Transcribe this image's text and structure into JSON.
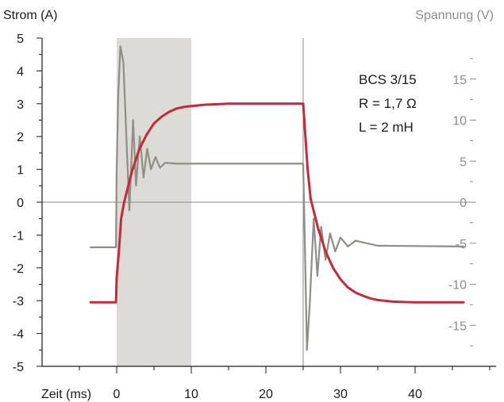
{
  "chart_data": {
    "type": "line",
    "title": "",
    "ylabel_left": "Strom (A)",
    "ylabel_right": "Spannung (V)",
    "xlabel": "Zeit (ms)",
    "xlim": [
      -10,
      50
    ],
    "ylim_left": [
      -5,
      5
    ],
    "ylim_right": [
      -20,
      20
    ],
    "x_ticks": [
      0,
      10,
      20,
      30,
      40
    ],
    "y_ticks_left": [
      5,
      4,
      3,
      2,
      1,
      0,
      -1,
      -2,
      -3,
      -4,
      -5
    ],
    "y_ticks_right": [
      15,
      10,
      5,
      0,
      -5,
      -10,
      -15
    ],
    "shaded_region": [
      0,
      10
    ],
    "vertical_marker": 25,
    "annotations": [
      "BCS 3/15",
      "R = 1,7 Ω",
      "L = 2 mH"
    ],
    "colors": {
      "current": "#c8283a",
      "voltage": "#8e8e86",
      "shade": "#dcdbd5",
      "axes": "#1a1a1a"
    },
    "series": [
      {
        "axis": "left",
        "values": [
          [
            -3.5,
            -3.05
          ],
          [
            -0.1,
            -3.05
          ],
          [
            0,
            -2.3
          ],
          [
            0.3,
            -1.5
          ],
          [
            0.6,
            -0.5
          ],
          [
            1,
            0.0
          ],
          [
            2,
            0.9
          ],
          [
            3,
            1.6
          ],
          [
            4,
            2.05
          ],
          [
            5,
            2.4
          ],
          [
            6,
            2.6
          ],
          [
            7,
            2.75
          ],
          [
            8,
            2.85
          ],
          [
            9,
            2.9
          ],
          [
            10,
            2.93
          ],
          [
            12,
            2.97
          ],
          [
            15,
            3.0
          ],
          [
            25,
            3.0
          ],
          [
            25.3,
            2.0
          ],
          [
            25.6,
            1.0
          ],
          [
            26,
            0.1
          ],
          [
            27,
            -0.8
          ],
          [
            28,
            -1.5
          ],
          [
            29,
            -2.0
          ],
          [
            30,
            -2.35
          ],
          [
            31,
            -2.6
          ],
          [
            32,
            -2.75
          ],
          [
            33,
            -2.85
          ],
          [
            34,
            -2.93
          ],
          [
            35,
            -2.98
          ],
          [
            37,
            -3.03
          ],
          [
            40,
            -3.05
          ],
          [
            46.5,
            -3.05
          ]
        ]
      },
      {
        "axis": "right",
        "values": [
          [
            -3.5,
            -5.5
          ],
          [
            -0.1,
            -5.5
          ],
          [
            0,
            4
          ],
          [
            0.2,
            13
          ],
          [
            0.5,
            19
          ],
          [
            0.9,
            17
          ],
          [
            1.3,
            8
          ],
          [
            1.7,
            -1
          ],
          [
            2.2,
            10
          ],
          [
            2.6,
            2
          ],
          [
            3.1,
            8
          ],
          [
            3.6,
            3
          ],
          [
            4.1,
            6.5
          ],
          [
            4.6,
            4
          ],
          [
            5.2,
            5.5
          ],
          [
            5.8,
            4.2
          ],
          [
            6.5,
            4.8
          ],
          [
            8,
            4.7
          ],
          [
            10,
            4.7
          ],
          [
            25,
            4.7
          ],
          [
            25.2,
            -4
          ],
          [
            25.5,
            -18
          ],
          [
            25.9,
            -12
          ],
          [
            26.4,
            -2
          ],
          [
            26.9,
            -9
          ],
          [
            27.4,
            -3
          ],
          [
            28,
            -7
          ],
          [
            28.6,
            -3.8
          ],
          [
            29.3,
            -6
          ],
          [
            30,
            -4.3
          ],
          [
            31,
            -5.4
          ],
          [
            32,
            -4.7
          ],
          [
            35,
            -5.3
          ],
          [
            46.5,
            -5.4
          ]
        ]
      }
    ]
  }
}
